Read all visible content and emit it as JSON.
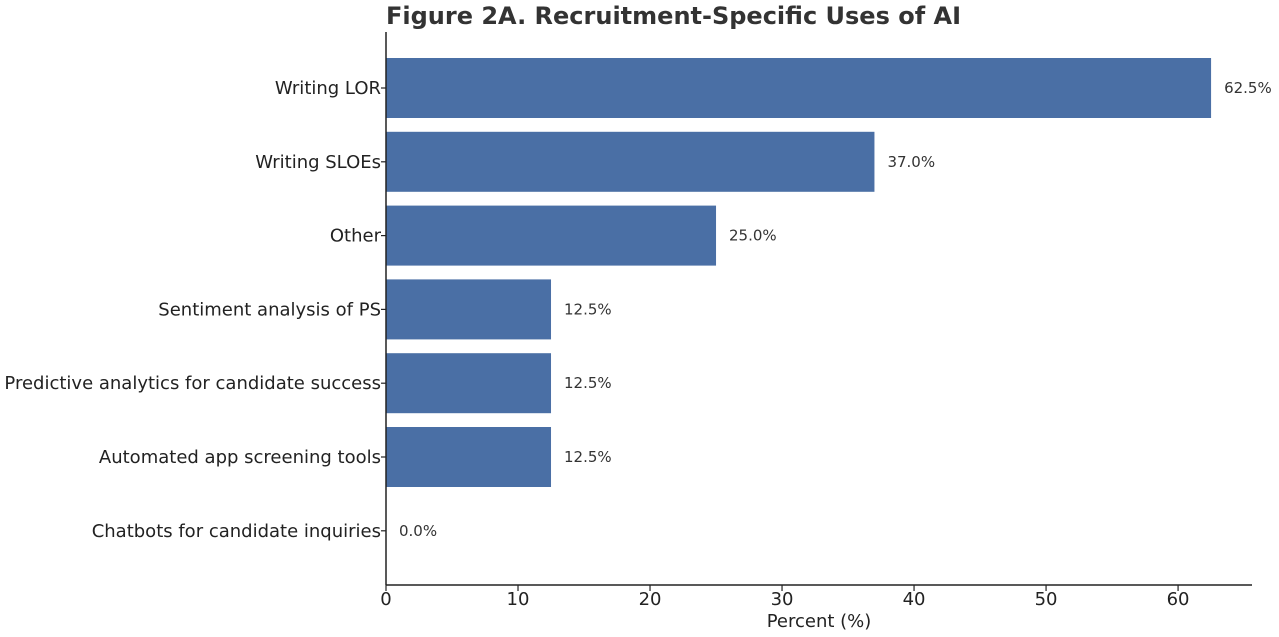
{
  "chart_data": {
    "type": "bar",
    "orientation": "horizontal",
    "title": "Figure 2A. Recruitment-Specific Uses of AI",
    "xlabel": "Percent (%)",
    "ylabel": "",
    "categories": [
      "Writing LOR",
      "Writing SLOEs",
      "Other",
      "Sentiment analysis of PS",
      "Predictive analytics for candidate success",
      "Automated app screening tools",
      "Chatbots for candidate inquiries"
    ],
    "values": [
      62.5,
      37.0,
      25.0,
      12.5,
      12.5,
      12.5,
      0.0
    ],
    "data_labels": [
      "62.5%",
      "37.0%",
      "25.0%",
      "12.5%",
      "12.5%",
      "12.5%",
      "0.0%"
    ],
    "xlim": [
      0,
      65.6
    ],
    "xticks": [
      0,
      10,
      20,
      30,
      40,
      50,
      60
    ],
    "grid": false,
    "legend": "none",
    "bar_color": "#4a6fa5"
  }
}
